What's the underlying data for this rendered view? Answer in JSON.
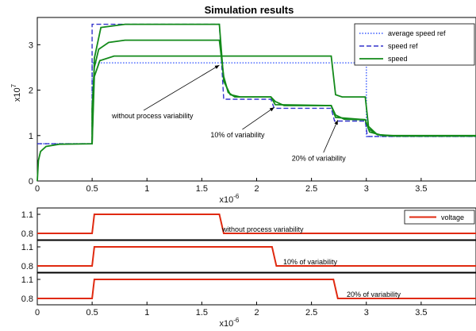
{
  "title": "Simulation results",
  "colors": {
    "avg_ref": "#3a5bff",
    "speed_ref": "#3333cc",
    "speed": "#138a1a",
    "voltage": "#e02a10"
  },
  "chart_data": [
    {
      "type": "line",
      "title": "Simulation results",
      "xlabel": "x10^-6",
      "x_exp_label": "x10",
      "x_exp": "-6",
      "ylabel": "x10",
      "y_exp": "7",
      "xlim": [
        0,
        4.0
      ],
      "ylim": [
        0,
        3.6
      ],
      "xticks": [
        0,
        0.5,
        1,
        1.5,
        2,
        2.5,
        3,
        3.5
      ],
      "xtick_labels": [
        "0",
        "0.5",
        "1",
        "1.5",
        "2",
        "2.5",
        "3",
        "3.5"
      ],
      "yticks": [
        0,
        1,
        2,
        3
      ],
      "ytick_labels": [
        "0",
        "1",
        "2",
        "3"
      ],
      "grid": false,
      "legend_position": "top-right",
      "series": [
        {
          "name": "average speed ref",
          "style": "dotted",
          "points": [
            [
              0,
              0.82
            ],
            [
              0.5,
              0.82
            ],
            [
              0.5,
              2.6
            ],
            [
              3.0,
              2.6
            ],
            [
              3.0,
              0.98
            ],
            [
              4.0,
              0.98
            ]
          ]
        },
        {
          "name": "speed ref",
          "style": "dashed",
          "points": [
            [
              0,
              0.82
            ],
            [
              0.5,
              0.82
            ],
            [
              0.5,
              3.45
            ],
            [
              1.66,
              3.45
            ],
            [
              1.7,
              1.8
            ],
            [
              2.13,
              1.8
            ],
            [
              2.16,
              1.6
            ],
            [
              2.68,
              1.6
            ],
            [
              2.71,
              1.32
            ],
            [
              2.99,
              1.32
            ],
            [
              3.01,
              0.98
            ],
            [
              4.0,
              0.98
            ]
          ]
        },
        {
          "name": "speed",
          "style": "solid",
          "points": [
            [
              0,
              0.0
            ],
            [
              0.01,
              0.45
            ],
            [
              0.03,
              0.65
            ],
            [
              0.08,
              0.76
            ],
            [
              0.2,
              0.81
            ],
            [
              0.5,
              0.82
            ],
            [
              0.5,
              1.6
            ],
            [
              0.52,
              2.5
            ],
            [
              0.56,
              2.9
            ],
            [
              0.65,
              3.05
            ],
            [
              0.8,
              3.1
            ],
            [
              1.0,
              3.1
            ],
            [
              1.66,
              3.1
            ],
            [
              1.7,
              2.3
            ],
            [
              1.74,
              1.95
            ],
            [
              1.8,
              1.85
            ],
            [
              2.13,
              1.85
            ],
            [
              2.17,
              1.75
            ],
            [
              2.25,
              1.66
            ],
            [
              2.68,
              1.66
            ],
            [
              2.72,
              1.45
            ],
            [
              2.8,
              1.36
            ],
            [
              2.99,
              1.35
            ],
            [
              3.02,
              1.15
            ],
            [
              3.1,
              1.02
            ],
            [
              3.25,
              0.99
            ],
            [
              4.0,
              0.99
            ]
          ]
        },
        {
          "name": "",
          "style": "solid",
          "points": [
            [
              0.5,
              0.82
            ],
            [
              0.52,
              2.3
            ],
            [
              0.57,
              2.65
            ],
            [
              0.7,
              2.75
            ],
            [
              2.68,
              2.75
            ],
            [
              2.72,
              1.9
            ],
            [
              2.78,
              1.85
            ],
            [
              2.99,
              1.85
            ],
            [
              3.02,
              1.2
            ],
            [
              3.1,
              1.02
            ],
            [
              3.3,
              0.99
            ],
            [
              4.0,
              0.99
            ]
          ]
        },
        {
          "name": "",
          "style": "solid",
          "points": [
            [
              0.5,
              0.82
            ],
            [
              0.52,
              2.7
            ],
            [
              0.58,
              3.38
            ],
            [
              0.8,
              3.45
            ],
            [
              1.66,
              3.45
            ],
            [
              1.7,
              2.2
            ],
            [
              1.76,
              1.9
            ],
            [
              1.85,
              1.85
            ],
            [
              2.13,
              1.85
            ],
            [
              2.17,
              1.68
            ],
            [
              2.68,
              1.66
            ],
            [
              2.72,
              1.4
            ],
            [
              2.99,
              1.35
            ],
            [
              3.03,
              1.08
            ],
            [
              3.15,
              1.0
            ],
            [
              4.0,
              1.0
            ]
          ]
        }
      ],
      "annotations": [
        {
          "text": "without process variability",
          "x": 0.68,
          "y": 1.38,
          "arrow_to": [
            1.66,
            2.55
          ]
        },
        {
          "text": "10% of variability",
          "x": 1.58,
          "y": 0.96,
          "arrow_to": [
            2.16,
            1.62
          ]
        },
        {
          "text": "20% of variability",
          "x": 2.32,
          "y": 0.45,
          "arrow_to": [
            2.74,
            1.34
          ]
        }
      ]
    },
    {
      "type": "line",
      "xlim": [
        0,
        4.0
      ],
      "ylim": [
        0.7,
        1.2
      ],
      "yticks": [
        0.8,
        1.1
      ],
      "ytick_labels": [
        "0.8",
        "1.1"
      ],
      "legend": "voltage",
      "legend_position": "top-right",
      "annotation": "without process variability",
      "series": [
        {
          "name": "voltage",
          "points": [
            [
              0,
              0.8
            ],
            [
              0.5,
              0.8
            ],
            [
              0.52,
              1.1
            ],
            [
              1.66,
              1.1
            ],
            [
              1.7,
              0.8
            ],
            [
              4.0,
              0.8
            ]
          ]
        }
      ]
    },
    {
      "type": "line",
      "xlim": [
        0,
        4.0
      ],
      "ylim": [
        0.7,
        1.2
      ],
      "yticks": [
        0.8,
        1.1
      ],
      "ytick_labels": [
        "0.8",
        "1.1"
      ],
      "annotation": "10% of variability",
      "series": [
        {
          "name": "",
          "points": [
            [
              0,
              0.8
            ],
            [
              0.5,
              0.8
            ],
            [
              0.52,
              1.1
            ],
            [
              2.14,
              1.1
            ],
            [
              2.18,
              0.8
            ],
            [
              4.0,
              0.8
            ]
          ]
        }
      ]
    },
    {
      "type": "line",
      "xlim": [
        0,
        4.0
      ],
      "ylim": [
        0.7,
        1.2
      ],
      "yticks": [
        0.8,
        1.1
      ],
      "ytick_labels": [
        "0.8",
        "1.1"
      ],
      "xticks": [
        0,
        0.5,
        1,
        1.5,
        2,
        2.5,
        3,
        3.5
      ],
      "xtick_labels": [
        "0",
        "0.5",
        "1",
        "1.5",
        "2",
        "2.5",
        "3",
        "3.5"
      ],
      "x_exp_label": "x10",
      "x_exp": "-6",
      "annotation": "20% of variability",
      "series": [
        {
          "name": "",
          "points": [
            [
              0,
              0.8
            ],
            [
              0.5,
              0.8
            ],
            [
              0.52,
              1.1
            ],
            [
              2.7,
              1.1
            ],
            [
              2.74,
              0.8
            ],
            [
              4.0,
              0.8
            ]
          ]
        }
      ]
    }
  ]
}
